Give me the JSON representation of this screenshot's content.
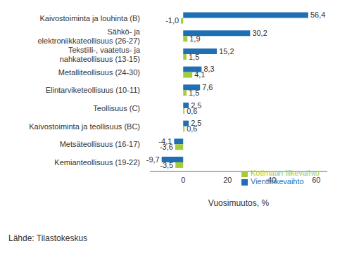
{
  "chart_data": {
    "type": "bar",
    "orientation": "horizontal",
    "x_label": "Vuosimuutos, %",
    "source": "Lähde: Tilastokeskus",
    "categories": [
      "Kaivostoiminta ja louhinta (B)",
      "Sähkö- ja\nelektroniikkateollisuus (26-27)",
      "Tekstiili-, vaatetus- ja\nnahkateollisuus (13-15)",
      "Metalliteollisuus (24-30)",
      "Elintarviketeollisuus (10-11)",
      "Teollisuus (C)",
      "Kaivostoiminta ja teollisuus (BC)",
      "Metsäteollisuus (16-17)",
      "Kemianteollisuus (19-22)"
    ],
    "series": [
      {
        "name": "Vientiliikevaihto",
        "color": "#1f6fb5",
        "values": [
          56.4,
          30.2,
          15.2,
          8.3,
          7.6,
          2.5,
          2.5,
          -4.1,
          -9.7
        ],
        "value_labels": [
          "56,4",
          "30,2",
          "15,2",
          "8,3",
          "7,6",
          "2,5",
          "2,5",
          "-4,1",
          "-9,7"
        ]
      },
      {
        "name": "Kotimaan liikevaihto",
        "color": "#a5cd39",
        "values": [
          -1.0,
          1.9,
          1.5,
          4.1,
          1.5,
          0.6,
          0.6,
          -3.6,
          -3.5
        ],
        "value_labels": [
          "-1,0",
          "1,9",
          "1,5",
          "4,1",
          "1,5",
          "0,6",
          "0,6",
          "-3,6",
          "-3,5"
        ]
      }
    ],
    "xlim": [
      -15,
      65
    ],
    "xticks": [
      0,
      20,
      40,
      60
    ],
    "data_labels": true,
    "legend": "lower right",
    "grid": false
  }
}
